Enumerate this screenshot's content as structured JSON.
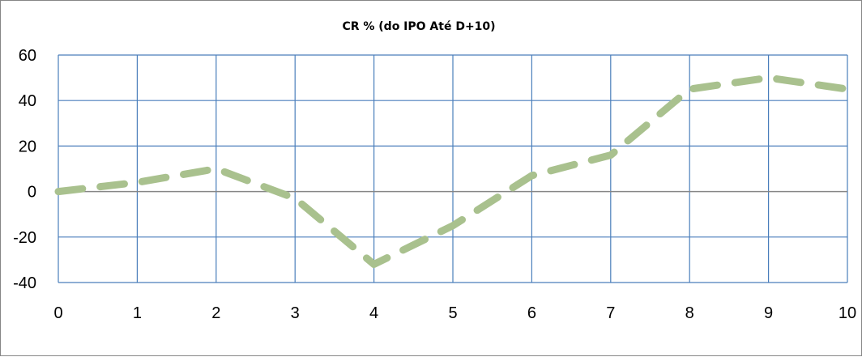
{
  "chart_data": {
    "type": "line",
    "title": "CR % (do IPO Até D+10)",
    "xlabel": "",
    "ylabel": "",
    "x": [
      0,
      1,
      2,
      3,
      4,
      5,
      6,
      7,
      8,
      9,
      10
    ],
    "series": [
      {
        "values": [
          0,
          4,
          10,
          -3,
          -32,
          -15,
          7,
          16,
          45,
          50,
          45
        ],
        "color": "#a9c18e",
        "line_style": "dashed"
      }
    ],
    "xlim": [
      0,
      10
    ],
    "ylim": [
      -40,
      60
    ],
    "x_ticks": [
      0,
      1,
      2,
      3,
      4,
      5,
      6,
      7,
      8,
      9,
      10
    ],
    "y_ticks": [
      -40,
      -20,
      0,
      20,
      40,
      60
    ],
    "grid": true,
    "legend": "none",
    "grid_color": "#4a7ebb",
    "zero_line_color": "#868686",
    "frame_color": "#868686"
  }
}
